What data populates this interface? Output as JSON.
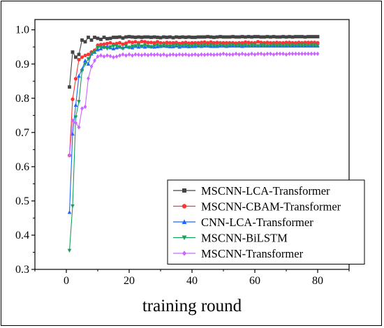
{
  "chart_data": {
    "type": "line",
    "xlabel": "training round",
    "ylabel": "",
    "xlim": [
      -10,
      90
    ],
    "ylim": [
      0.3,
      1.03
    ],
    "x_ticks": [
      0,
      20,
      40,
      60,
      80
    ],
    "y_ticks": [
      0.3,
      0.4,
      0.5,
      0.6,
      0.7,
      0.8,
      0.9,
      1.0
    ],
    "x_tick_labels": [
      "0",
      "20",
      "40",
      "60",
      "80"
    ],
    "y_tick_labels": [
      "0.3",
      "0.4",
      "0.5",
      "0.6",
      "0.7",
      "0.8",
      "0.9",
      "1.0"
    ],
    "grid": false,
    "legend_position": "bottom-right",
    "x": [
      1,
      2,
      3,
      4,
      5,
      6,
      7,
      8,
      9,
      10,
      11,
      12,
      13,
      14,
      15,
      16,
      17,
      18,
      19,
      20,
      21,
      22,
      23,
      24,
      25,
      26,
      27,
      28,
      29,
      30,
      31,
      32,
      33,
      34,
      35,
      36,
      37,
      38,
      39,
      40,
      41,
      42,
      43,
      44,
      45,
      46,
      47,
      48,
      49,
      50,
      51,
      52,
      53,
      54,
      55,
      56,
      57,
      58,
      59,
      60,
      61,
      62,
      63,
      64,
      65,
      66,
      67,
      68,
      69,
      70,
      71,
      72,
      73,
      74,
      75,
      76,
      77,
      78,
      79,
      80
    ],
    "series": [
      {
        "name": "MSCNN-LCA-Transformer",
        "color": "#444444",
        "marker": "square",
        "values": [
          0.833,
          0.935,
          0.92,
          0.928,
          0.97,
          0.965,
          0.978,
          0.97,
          0.978,
          0.975,
          0.972,
          0.978,
          0.974,
          0.975,
          0.978,
          0.978,
          0.979,
          0.976,
          0.979,
          0.98,
          0.979,
          0.978,
          0.979,
          0.978,
          0.979,
          0.979,
          0.978,
          0.979,
          0.978,
          0.977,
          0.979,
          0.978,
          0.979,
          0.977,
          0.979,
          0.978,
          0.979,
          0.978,
          0.979,
          0.978,
          0.978,
          0.979,
          0.979,
          0.979,
          0.98,
          0.979,
          0.978,
          0.979,
          0.98,
          0.979,
          0.979,
          0.979,
          0.98,
          0.979,
          0.979,
          0.98,
          0.979,
          0.98,
          0.979,
          0.98,
          0.98,
          0.979,
          0.979,
          0.98,
          0.979,
          0.98,
          0.979,
          0.979,
          0.98,
          0.979,
          0.98,
          0.979,
          0.98,
          0.98,
          0.98,
          0.979,
          0.98,
          0.98,
          0.98,
          0.98
        ]
      },
      {
        "name": "MSCNN-CBAM-Transformer",
        "color": "#ff3333",
        "marker": "circle",
        "values": [
          0.633,
          0.797,
          0.857,
          0.913,
          0.92,
          0.925,
          0.928,
          0.935,
          0.94,
          0.955,
          0.957,
          0.958,
          0.96,
          0.962,
          0.958,
          0.96,
          0.962,
          0.958,
          0.961,
          0.965,
          0.963,
          0.965,
          0.962,
          0.966,
          0.965,
          0.963,
          0.963,
          0.962,
          0.965,
          0.962,
          0.961,
          0.963,
          0.962,
          0.962,
          0.963,
          0.96,
          0.962,
          0.963,
          0.961,
          0.962,
          0.962,
          0.962,
          0.963,
          0.964,
          0.962,
          0.964,
          0.962,
          0.963,
          0.962,
          0.962,
          0.962,
          0.962,
          0.962,
          0.961,
          0.962,
          0.962,
          0.964,
          0.963,
          0.962,
          0.962,
          0.965,
          0.963,
          0.962,
          0.963,
          0.962,
          0.962,
          0.963,
          0.962,
          0.962,
          0.963,
          0.963,
          0.962,
          0.962,
          0.963,
          0.962,
          0.963,
          0.963,
          0.963,
          0.963,
          0.962
        ]
      },
      {
        "name": "CNN-LCA-Transformer",
        "color": "#1a66ff",
        "marker": "triangle-up",
        "values": [
          0.467,
          0.696,
          0.78,
          0.865,
          0.885,
          0.91,
          0.9,
          0.93,
          0.935,
          0.942,
          0.945,
          0.95,
          0.952,
          0.948,
          0.945,
          0.948,
          0.95,
          0.948,
          0.951,
          0.95,
          0.948,
          0.952,
          0.95,
          0.952,
          0.95,
          0.952,
          0.951,
          0.95,
          0.951,
          0.952,
          0.953,
          0.952,
          0.951,
          0.951,
          0.953,
          0.95,
          0.952,
          0.952,
          0.951,
          0.952,
          0.952,
          0.953,
          0.952,
          0.953,
          0.953,
          0.952,
          0.952,
          0.952,
          0.953,
          0.953,
          0.952,
          0.953,
          0.953,
          0.953,
          0.953,
          0.952,
          0.953,
          0.953,
          0.953,
          0.953,
          0.953,
          0.953,
          0.953,
          0.953,
          0.953,
          0.953,
          0.953,
          0.953,
          0.953,
          0.953,
          0.953,
          0.953,
          0.953,
          0.953,
          0.953,
          0.953,
          0.953,
          0.953,
          0.953,
          0.953
        ]
      },
      {
        "name": "MSCNN-BiLSTM",
        "color": "#1a9e5a",
        "marker": "triangle-down",
        "values": [
          0.355,
          0.485,
          0.745,
          0.79,
          0.88,
          0.9,
          0.915,
          0.93,
          0.935,
          0.948,
          0.95,
          0.948,
          0.945,
          0.95,
          0.952,
          0.953,
          0.95,
          0.945,
          0.952,
          0.948,
          0.952,
          0.953,
          0.955,
          0.952,
          0.955,
          0.952,
          0.95,
          0.953,
          0.955,
          0.952,
          0.955,
          0.953,
          0.952,
          0.954,
          0.955,
          0.953,
          0.954,
          0.955,
          0.952,
          0.953,
          0.955,
          0.953,
          0.954,
          0.955,
          0.953,
          0.955,
          0.954,
          0.953,
          0.955,
          0.954,
          0.953,
          0.955,
          0.955,
          0.953,
          0.955,
          0.954,
          0.955,
          0.953,
          0.955,
          0.955,
          0.953,
          0.955,
          0.955,
          0.953,
          0.954,
          0.955,
          0.954,
          0.955,
          0.953,
          0.955,
          0.954,
          0.955,
          0.954,
          0.955,
          0.955,
          0.955,
          0.954,
          0.955,
          0.955,
          0.954
        ]
      },
      {
        "name": "MSCNN-Transformer",
        "color": "#cc66ff",
        "marker": "diamond",
        "values": [
          0.633,
          0.735,
          0.728,
          0.715,
          0.77,
          0.775,
          0.858,
          0.893,
          0.91,
          0.922,
          0.925,
          0.922,
          0.925,
          0.923,
          0.92,
          0.922,
          0.925,
          0.928,
          0.925,
          0.928,
          0.925,
          0.928,
          0.927,
          0.926,
          0.928,
          0.926,
          0.928,
          0.927,
          0.928,
          0.926,
          0.928,
          0.925,
          0.927,
          0.928,
          0.926,
          0.928,
          0.927,
          0.928,
          0.926,
          0.927,
          0.928,
          0.926,
          0.928,
          0.927,
          0.928,
          0.928,
          0.927,
          0.928,
          0.928,
          0.93,
          0.928,
          0.928,
          0.928,
          0.93,
          0.928,
          0.93,
          0.928,
          0.928,
          0.93,
          0.928,
          0.93,
          0.93,
          0.928,
          0.93,
          0.93,
          0.928,
          0.93,
          0.93,
          0.93,
          0.928,
          0.93,
          0.93,
          0.93,
          0.93,
          0.93,
          0.93,
          0.93,
          0.93,
          0.93,
          0.93
        ]
      }
    ]
  }
}
